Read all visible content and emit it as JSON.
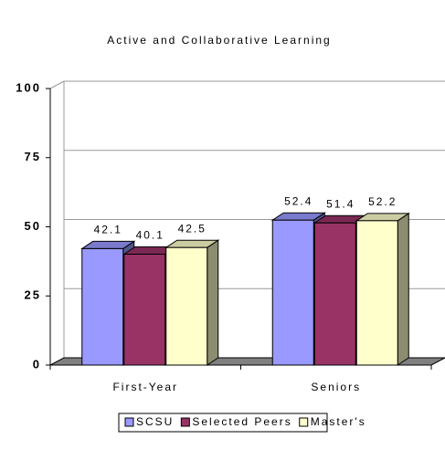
{
  "chart_data": {
    "type": "bar3d",
    "title": "Active and Collaborative Learning",
    "categories": [
      "First-Year",
      "Seniors"
    ],
    "series": [
      {
        "name": "SCSU",
        "color": "#9999ff",
        "values": [
          42.1,
          52.4
        ]
      },
      {
        "name": "Selected Peers",
        "color": "#993366",
        "values": [
          40.1,
          51.4
        ]
      },
      {
        "name": "Master's",
        "color": "#ffffcc",
        "values": [
          42.5,
          52.2
        ]
      }
    ],
    "ylim": [
      0,
      100
    ],
    "yticks": [
      0,
      25,
      50,
      75,
      100
    ],
    "grid": true,
    "legend": "bottom"
  }
}
